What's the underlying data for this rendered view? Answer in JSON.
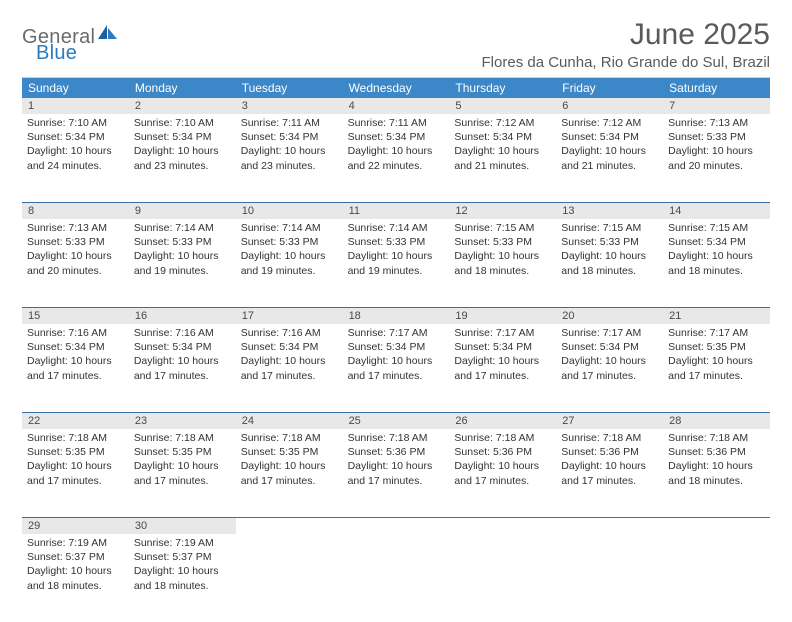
{
  "logo": {
    "text1": "General",
    "text2": "Blue"
  },
  "title": "June 2025",
  "location": "Flores da Cunha, Rio Grande do Sul, Brazil",
  "colors": {
    "header_bg": "#3b87c8",
    "header_text": "#ffffff",
    "daynum_bg": "#e8e8e8",
    "week_sep": "#3b6fa0",
    "logo_blue": "#2a7bbf",
    "logo_gray": "#6b6b6b",
    "text": "#333333"
  },
  "day_headers": [
    "Sunday",
    "Monday",
    "Tuesday",
    "Wednesday",
    "Thursday",
    "Friday",
    "Saturday"
  ],
  "weeks": [
    [
      {
        "n": "1",
        "sr": "7:10 AM",
        "ss": "5:34 PM",
        "dl": "10 hours and 24 minutes."
      },
      {
        "n": "2",
        "sr": "7:10 AM",
        "ss": "5:34 PM",
        "dl": "10 hours and 23 minutes."
      },
      {
        "n": "3",
        "sr": "7:11 AM",
        "ss": "5:34 PM",
        "dl": "10 hours and 23 minutes."
      },
      {
        "n": "4",
        "sr": "7:11 AM",
        "ss": "5:34 PM",
        "dl": "10 hours and 22 minutes."
      },
      {
        "n": "5",
        "sr": "7:12 AM",
        "ss": "5:34 PM",
        "dl": "10 hours and 21 minutes."
      },
      {
        "n": "6",
        "sr": "7:12 AM",
        "ss": "5:34 PM",
        "dl": "10 hours and 21 minutes."
      },
      {
        "n": "7",
        "sr": "7:13 AM",
        "ss": "5:33 PM",
        "dl": "10 hours and 20 minutes."
      }
    ],
    [
      {
        "n": "8",
        "sr": "7:13 AM",
        "ss": "5:33 PM",
        "dl": "10 hours and 20 minutes."
      },
      {
        "n": "9",
        "sr": "7:14 AM",
        "ss": "5:33 PM",
        "dl": "10 hours and 19 minutes."
      },
      {
        "n": "10",
        "sr": "7:14 AM",
        "ss": "5:33 PM",
        "dl": "10 hours and 19 minutes."
      },
      {
        "n": "11",
        "sr": "7:14 AM",
        "ss": "5:33 PM",
        "dl": "10 hours and 19 minutes."
      },
      {
        "n": "12",
        "sr": "7:15 AM",
        "ss": "5:33 PM",
        "dl": "10 hours and 18 minutes."
      },
      {
        "n": "13",
        "sr": "7:15 AM",
        "ss": "5:33 PM",
        "dl": "10 hours and 18 minutes."
      },
      {
        "n": "14",
        "sr": "7:15 AM",
        "ss": "5:34 PM",
        "dl": "10 hours and 18 minutes."
      }
    ],
    [
      {
        "n": "15",
        "sr": "7:16 AM",
        "ss": "5:34 PM",
        "dl": "10 hours and 17 minutes."
      },
      {
        "n": "16",
        "sr": "7:16 AM",
        "ss": "5:34 PM",
        "dl": "10 hours and 17 minutes."
      },
      {
        "n": "17",
        "sr": "7:16 AM",
        "ss": "5:34 PM",
        "dl": "10 hours and 17 minutes."
      },
      {
        "n": "18",
        "sr": "7:17 AM",
        "ss": "5:34 PM",
        "dl": "10 hours and 17 minutes."
      },
      {
        "n": "19",
        "sr": "7:17 AM",
        "ss": "5:34 PM",
        "dl": "10 hours and 17 minutes."
      },
      {
        "n": "20",
        "sr": "7:17 AM",
        "ss": "5:34 PM",
        "dl": "10 hours and 17 minutes."
      },
      {
        "n": "21",
        "sr": "7:17 AM",
        "ss": "5:35 PM",
        "dl": "10 hours and 17 minutes."
      }
    ],
    [
      {
        "n": "22",
        "sr": "7:18 AM",
        "ss": "5:35 PM",
        "dl": "10 hours and 17 minutes."
      },
      {
        "n": "23",
        "sr": "7:18 AM",
        "ss": "5:35 PM",
        "dl": "10 hours and 17 minutes."
      },
      {
        "n": "24",
        "sr": "7:18 AM",
        "ss": "5:35 PM",
        "dl": "10 hours and 17 minutes."
      },
      {
        "n": "25",
        "sr": "7:18 AM",
        "ss": "5:36 PM",
        "dl": "10 hours and 17 minutes."
      },
      {
        "n": "26",
        "sr": "7:18 AM",
        "ss": "5:36 PM",
        "dl": "10 hours and 17 minutes."
      },
      {
        "n": "27",
        "sr": "7:18 AM",
        "ss": "5:36 PM",
        "dl": "10 hours and 17 minutes."
      },
      {
        "n": "28",
        "sr": "7:18 AM",
        "ss": "5:36 PM",
        "dl": "10 hours and 18 minutes."
      }
    ],
    [
      {
        "n": "29",
        "sr": "7:19 AM",
        "ss": "5:37 PM",
        "dl": "10 hours and 18 minutes."
      },
      {
        "n": "30",
        "sr": "7:19 AM",
        "ss": "5:37 PM",
        "dl": "10 hours and 18 minutes."
      },
      null,
      null,
      null,
      null,
      null
    ]
  ],
  "labels": {
    "sunrise": "Sunrise:",
    "sunset": "Sunset:",
    "daylight": "Daylight:"
  }
}
